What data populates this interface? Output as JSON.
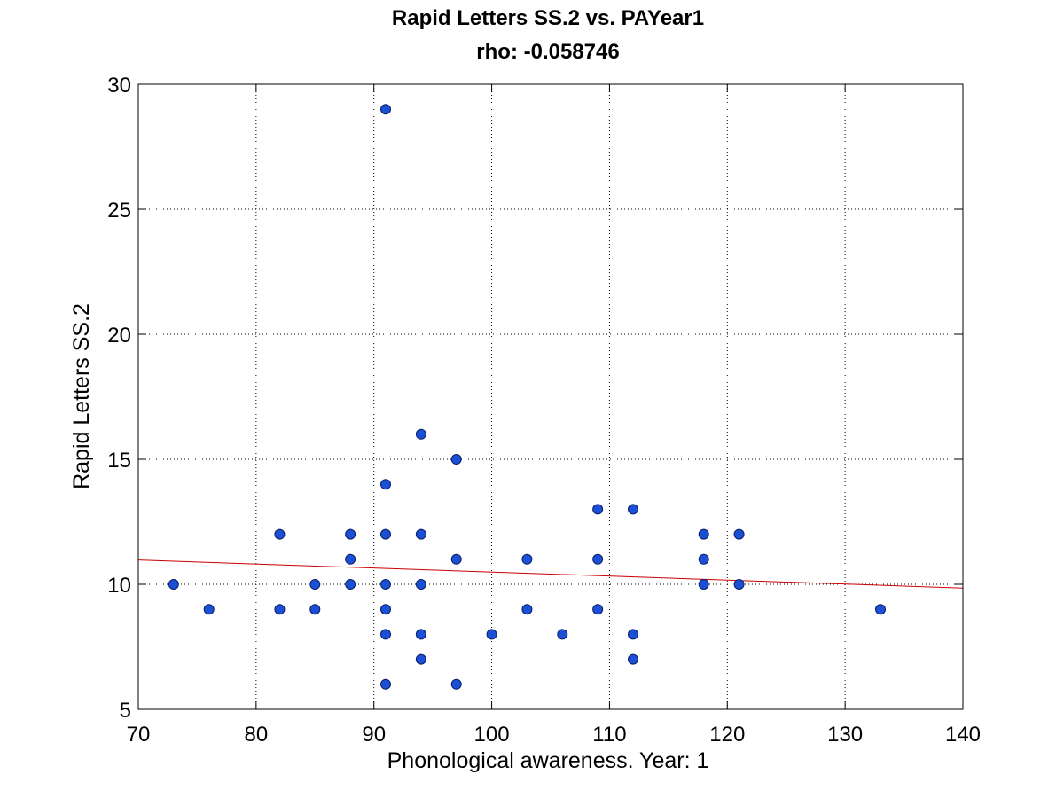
{
  "chart_data": {
    "type": "scatter",
    "title": "Rapid Letters SS.2 vs. PAYear1",
    "subtitle": "rho: -0.058746",
    "xlabel": "Phonological awareness. Year: 1",
    "ylabel": "Rapid Letters SS.2",
    "xlim": [
      70,
      140
    ],
    "ylim": [
      5,
      30
    ],
    "xticks": [
      70,
      80,
      90,
      100,
      110,
      120,
      130,
      140
    ],
    "yticks": [
      5,
      10,
      15,
      20,
      25,
      30
    ],
    "grid": true,
    "points": [
      {
        "x": 73,
        "y": 10
      },
      {
        "x": 76,
        "y": 9
      },
      {
        "x": 82,
        "y": 12
      },
      {
        "x": 82,
        "y": 9
      },
      {
        "x": 85,
        "y": 10
      },
      {
        "x": 85,
        "y": 9
      },
      {
        "x": 88,
        "y": 12
      },
      {
        "x": 88,
        "y": 11
      },
      {
        "x": 88,
        "y": 10
      },
      {
        "x": 91,
        "y": 29
      },
      {
        "x": 91,
        "y": 14
      },
      {
        "x": 91,
        "y": 12
      },
      {
        "x": 91,
        "y": 10
      },
      {
        "x": 91,
        "y": 9
      },
      {
        "x": 91,
        "y": 8
      },
      {
        "x": 91,
        "y": 6
      },
      {
        "x": 94,
        "y": 16
      },
      {
        "x": 94,
        "y": 12
      },
      {
        "x": 94,
        "y": 10
      },
      {
        "x": 94,
        "y": 8
      },
      {
        "x": 94,
        "y": 7
      },
      {
        "x": 97,
        "y": 15
      },
      {
        "x": 97,
        "y": 11
      },
      {
        "x": 97,
        "y": 6
      },
      {
        "x": 100,
        "y": 8
      },
      {
        "x": 103,
        "y": 11
      },
      {
        "x": 103,
        "y": 9
      },
      {
        "x": 106,
        "y": 8
      },
      {
        "x": 109,
        "y": 13
      },
      {
        "x": 109,
        "y": 11
      },
      {
        "x": 109,
        "y": 9
      },
      {
        "x": 112,
        "y": 13
      },
      {
        "x": 112,
        "y": 8
      },
      {
        "x": 112,
        "y": 7
      },
      {
        "x": 118,
        "y": 12
      },
      {
        "x": 118,
        "y": 11
      },
      {
        "x": 118,
        "y": 10
      },
      {
        "x": 121,
        "y": 12
      },
      {
        "x": 121,
        "y": 10
      },
      {
        "x": 133,
        "y": 9
      }
    ],
    "fit_line": {
      "x": [
        70,
        140
      ],
      "y": [
        10.97,
        9.85
      ]
    },
    "colors": {
      "marker_fill": "#1a4fd6",
      "marker_edge": "#0a1f66",
      "fit_line": "#cc0000",
      "grid": "#000000"
    }
  }
}
